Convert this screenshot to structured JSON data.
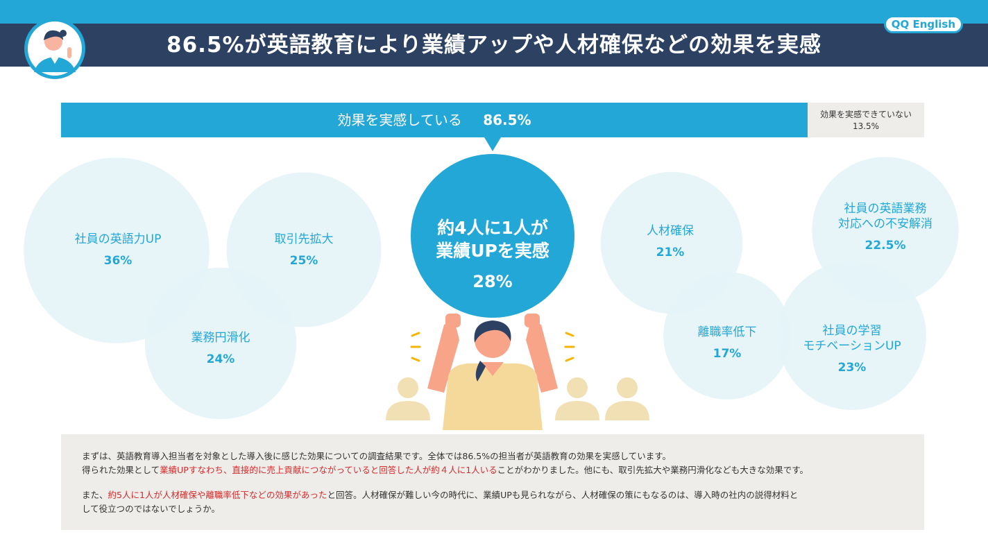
{
  "header": {
    "title": "86.5%が英語教育により業績アップや人材確保などの効果を実感",
    "logo_text": "QQ English"
  },
  "summary_bar": {
    "positive_label": "効果を実感している",
    "positive_value": "86.5%",
    "negative_label": "効果を実感できていない",
    "negative_value": "13.5%"
  },
  "colors": {
    "accent": "#23a7d6",
    "header_band": "#2d4263",
    "bubble_fill": "#e3f3f8",
    "highlight_text": "#d62a2a",
    "panel_bg": "#efedea"
  },
  "chart_data": {
    "type": "bubble",
    "unit": "%",
    "items": [
      {
        "name": "社員の英語力UP",
        "value": 36,
        "label": "36%"
      },
      {
        "name": "取引先拡大",
        "value": 25,
        "label": "25%"
      },
      {
        "name": "業務円滑化",
        "value": 24,
        "label": "24%"
      },
      {
        "name": "約4人に1人が業績UPを実感",
        "value": 28,
        "label": "28%",
        "highlight": true
      },
      {
        "name": "人材確保",
        "value": 21,
        "label": "21%"
      },
      {
        "name": "社員の英語業務対応への不安解消",
        "value": 22.5,
        "label": "22.5%"
      },
      {
        "name": "離職率低下",
        "value": 17,
        "label": "17%"
      },
      {
        "name": "社員の学習モチベーションUP",
        "value": 23,
        "label": "23%"
      }
    ]
  },
  "bubbles": {
    "english_skill": {
      "name": "社員の英語力UP",
      "value": "36%"
    },
    "client_expansion": {
      "name": "取引先拡大",
      "value": "25%"
    },
    "smooth_operations": {
      "name": "業務円滑化",
      "value": "24%"
    },
    "performance": {
      "line1": "約4人に1人が",
      "line2": "業績UPを実感",
      "value": "28%"
    },
    "talent_acquisition": {
      "name": "人材確保",
      "value": "21%"
    },
    "anxiety_relief": {
      "line1": "社員の英語業務",
      "line2": "対応への不安解消",
      "value": "22.5%"
    },
    "turnover": {
      "name": "離職率低下",
      "value": "17%"
    },
    "motivation": {
      "line1": "社員の学習",
      "line2": "モチベーションUP",
      "value": "23%"
    }
  },
  "description": {
    "p1": "まずは、英語教育導入担当者を対象とした導入後に感じた効果についての調査結果です。全体では86.5%の担当者が英語教育の効果を実感しています。",
    "p2_pre": "得られた効果として",
    "p2_highlight": "業績UPすなわち、直接的に売上貢献につながっていると回答した人が約４人に1人いる",
    "p2_post": "ことがわかりました。他にも、取引先拡大や業務円滑化なども大きな効果です。",
    "p3_pre": "また、",
    "p3_highlight": "約5人に1人が人材確保や離職率低下などの効果があった",
    "p3_post": "と回答。人材確保が難しい今の時代に、業績UPも見られながら、人材確保の策にもなるのは、導入時の社内の説得材料と",
    "p4": "して役立つのではないでしょうか。"
  }
}
